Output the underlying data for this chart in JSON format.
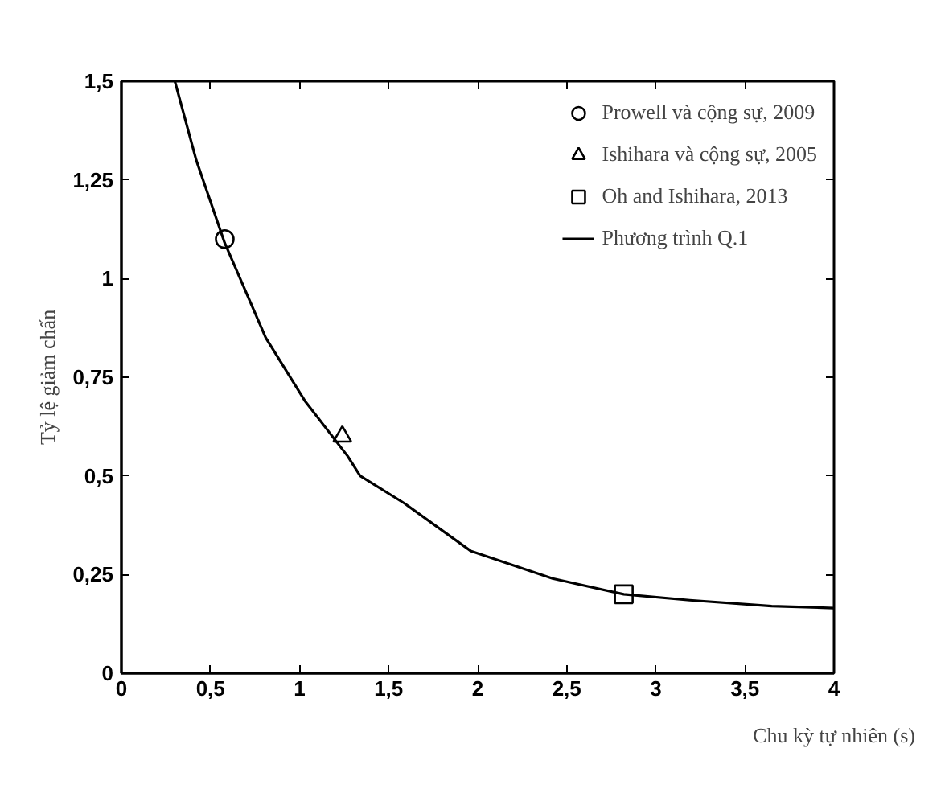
{
  "chart_data": {
    "type": "scatter",
    "xlabel": "Chu kỳ tự nhiên (s)",
    "ylabel": "Tỷ lệ giảm chấn",
    "xlim": [
      0,
      4
    ],
    "ylim": [
      0,
      1.5
    ],
    "xticks": [
      0,
      {
        "value": 0.5,
        "label": "0,5"
      },
      1,
      {
        "value": 1.5,
        "label": "1,5"
      },
      2,
      {
        "value": 2.5,
        "label": "2,5"
      },
      3,
      {
        "value": 3.5,
        "label": "3,5"
      },
      4
    ],
    "yticks": [
      0,
      {
        "value": 0.25,
        "label": "0,25"
      },
      {
        "value": 0.5,
        "label": "0,5"
      },
      {
        "value": 0.75,
        "label": "0,75"
      },
      1,
      {
        "value": 1.25,
        "label": "1,25"
      },
      {
        "value": 1.5,
        "label": "1,5"
      }
    ],
    "grid": false,
    "legend": "top right",
    "series": [
      {
        "name": "Prowell và cộng sự, 2009",
        "marker": "circle",
        "color": "#000000",
        "x": [
          0.58
        ],
        "values": [
          1.1
        ]
      },
      {
        "name": "Ishihara và cộng sự, 2005",
        "marker": "triangle",
        "color": "#000000",
        "x": [
          1.24
        ],
        "values": [
          0.6
        ]
      },
      {
        "name": "Oh and Ishihara, 2013",
        "marker": "square",
        "color": "#000000",
        "x": [
          2.82
        ],
        "values": [
          0.2
        ]
      },
      {
        "name": "Phương trình Q.1",
        "type": "line",
        "line_style": "solid",
        "color": "#000000",
        "x": [
          0.3,
          0.42,
          0.58,
          0.81,
          1.03,
          1.27,
          1.34,
          1.59,
          1.96,
          2.42,
          2.82,
          3.19,
          3.65,
          4.0
        ],
        "values": [
          1.5,
          1.3,
          1.09,
          0.85,
          0.69,
          0.55,
          0.5,
          0.43,
          0.31,
          0.24,
          0.2,
          0.185,
          0.17,
          0.165
        ]
      }
    ]
  }
}
